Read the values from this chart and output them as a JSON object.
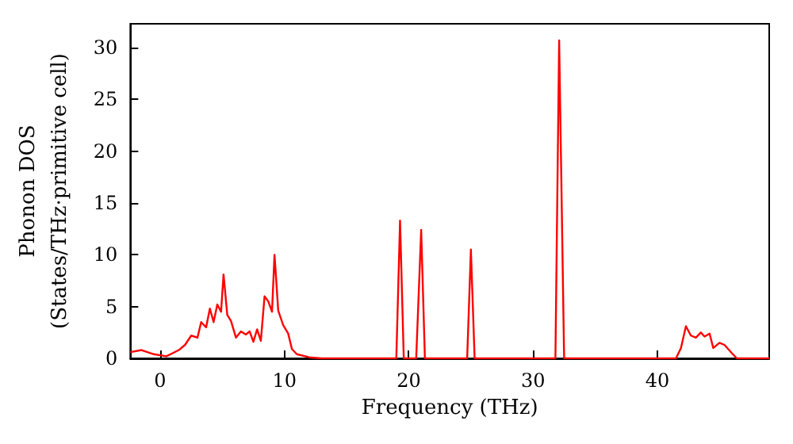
{
  "chart_data": {
    "type": "line",
    "xlabel": "Frequency (THz)",
    "ylabel": "Phonon DOS\n(States/THz·primitive cell)",
    "xlim": [
      -2.4,
      49
    ],
    "ylim": [
      0,
      32.3
    ],
    "xticks": [
      0,
      10,
      20,
      30,
      40
    ],
    "yticks": [
      0,
      5,
      10,
      15,
      20,
      25,
      30
    ],
    "grid": false,
    "marker": "none",
    "line_style": "solid",
    "series": [
      {
        "color": "#ff0000",
        "x": [
          -2.4,
          -1.5,
          -0.5,
          0.5,
          1,
          1.5,
          2,
          2.5,
          3,
          3.3,
          3.7,
          4,
          4.3,
          4.6,
          4.9,
          5.1,
          5.4,
          5.7,
          6.1,
          6.5,
          6.9,
          7.2,
          7.5,
          7.8,
          8.1,
          8.4,
          8.7,
          9,
          9.2,
          9.5,
          9.9,
          10.3,
          10.6,
          11,
          12,
          13,
          19,
          19.3,
          19.6,
          20.6,
          21,
          21.3,
          24.7,
          25,
          25.3,
          31.8,
          32.1,
          32.5,
          41.5,
          41.9,
          42.3,
          42.7,
          43.1,
          43.5,
          43.8,
          44.2,
          44.5,
          45,
          45.4,
          46,
          46.4,
          49
        ],
        "values": [
          0.6,
          0.8,
          0.4,
          0.2,
          0.5,
          0.8,
          1.3,
          2.2,
          2.0,
          3.5,
          3.0,
          4.8,
          3.5,
          5.2,
          4.5,
          8.1,
          4.2,
          3.6,
          2.0,
          2.6,
          2.3,
          2.6,
          1.6,
          2.8,
          1.7,
          6.0,
          5.5,
          4.5,
          10.0,
          4.6,
          3.2,
          2.4,
          0.9,
          0.4,
          0.1,
          0,
          0,
          13.3,
          0,
          0,
          12.4,
          0,
          0,
          10.5,
          0,
          0,
          30.7,
          0,
          0,
          1,
          3.1,
          2.2,
          2.0,
          2.5,
          2.1,
          2.4,
          1.0,
          1.5,
          1.3,
          0.5,
          0,
          0
        ]
      }
    ]
  }
}
